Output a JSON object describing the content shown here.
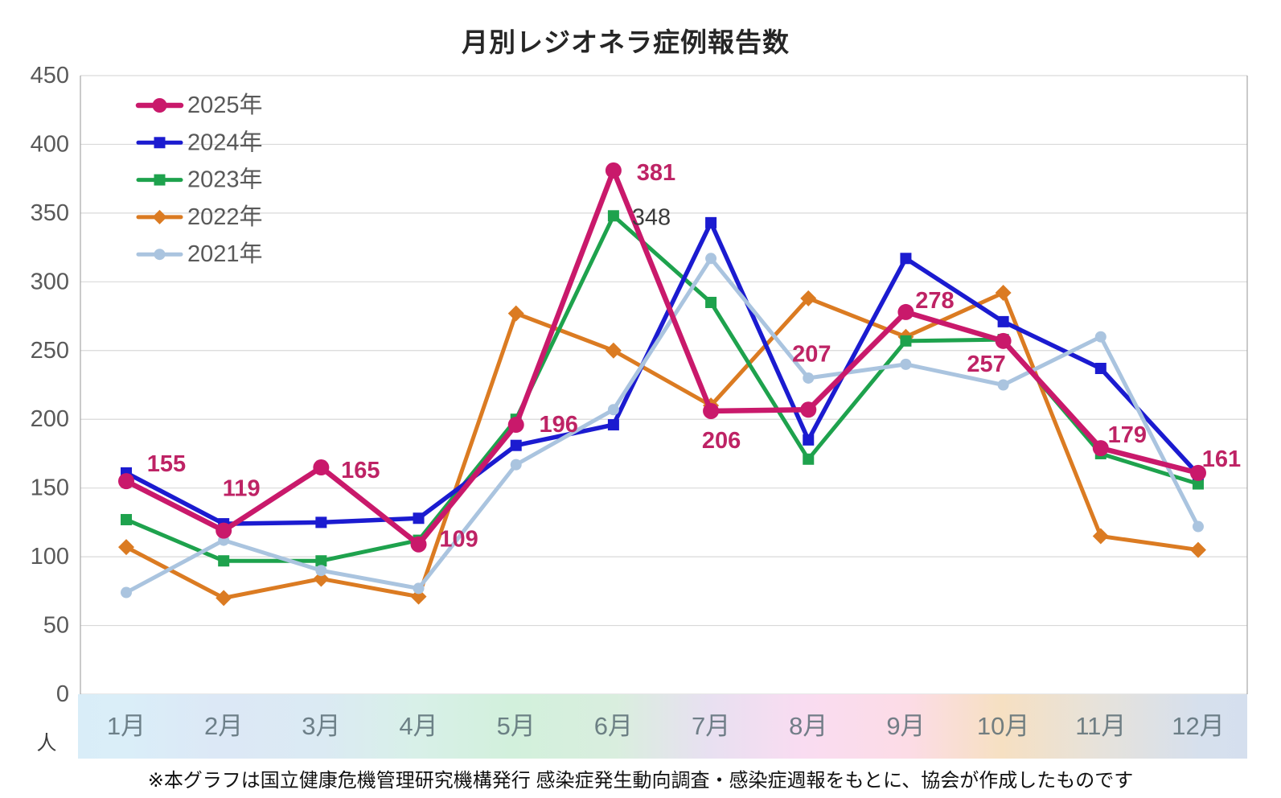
{
  "chart_data": {
    "type": "line",
    "title": "月別レジオネラ症例報告数",
    "y_unit": "人",
    "source_note": "※本グラフは国立健康危機管理研究機構発行 感染症発生動向調査・感染症週報をもとに、協会が作成したものです",
    "ylim": [
      0,
      450
    ],
    "y_step": 50,
    "y_ticks": [
      0,
      50,
      100,
      150,
      200,
      250,
      300,
      350,
      400,
      450
    ],
    "grid": "horizontal",
    "legend_position": "top-left-inside",
    "categories": [
      "1月",
      "2月",
      "3月",
      "4月",
      "5月",
      "6月",
      "7月",
      "8月",
      "9月",
      "10月",
      "11月",
      "12月"
    ],
    "series": [
      {
        "name": "2025年",
        "color": "#C9196B",
        "marker": "circle",
        "line_width": 6.5,
        "marker_size": 10,
        "values": [
          155,
          119,
          165,
          109,
          196,
          381,
          206,
          207,
          278,
          257,
          179,
          161
        ],
        "show_labels": true,
        "label_color": "#BE2365",
        "label_offsets": [
          [
            50,
            -21
          ],
          [
            22,
            -52
          ],
          [
            49,
            4
          ],
          [
            50,
            -6
          ],
          [
            53,
            0
          ],
          [
            53,
            3
          ],
          [
            13,
            37
          ],
          [
            4,
            -69
          ],
          [
            36,
            -14
          ],
          [
            -21,
            29
          ],
          [
            33,
            -16
          ],
          [
            29,
            -17
          ]
        ]
      },
      {
        "name": "2024年",
        "color": "#1B1BD0",
        "marker": "square",
        "line_width": 5.5,
        "marker_size": 7,
        "values": [
          161,
          124,
          125,
          128,
          181,
          196,
          343,
          185,
          317,
          271,
          237,
          160
        ]
      },
      {
        "name": "2023年",
        "color": "#1EA24D",
        "marker": "square",
        "line_width": 5,
        "marker_size": 7,
        "values": [
          127,
          97,
          97,
          112,
          200,
          348,
          285,
          171,
          257,
          258,
          175,
          153
        ]
      },
      {
        "name": "2022年",
        "color": "#DB7B22",
        "marker": "diamond",
        "line_width": 5,
        "marker_size": 8,
        "values": [
          107,
          70,
          84,
          71,
          277,
          250,
          210,
          288,
          260,
          292,
          115,
          105
        ]
      },
      {
        "name": "2021年",
        "color": "#AAC4DF",
        "marker": "circle",
        "line_width": 5,
        "marker_size": 7,
        "values": [
          74,
          112,
          90,
          77,
          167,
          207,
          317,
          230,
          240,
          225,
          260,
          122
        ]
      }
    ],
    "annotations": [
      {
        "text": "348",
        "color": "#3B3B3B",
        "series": "2023年",
        "month_index": 5,
        "dx": 47,
        "dy": 2
      }
    ],
    "colors": {
      "axis_tick": "#595959",
      "gridline": "#D9D9D9",
      "spine": "#A6A6A6",
      "legend_text": "#595959"
    }
  }
}
